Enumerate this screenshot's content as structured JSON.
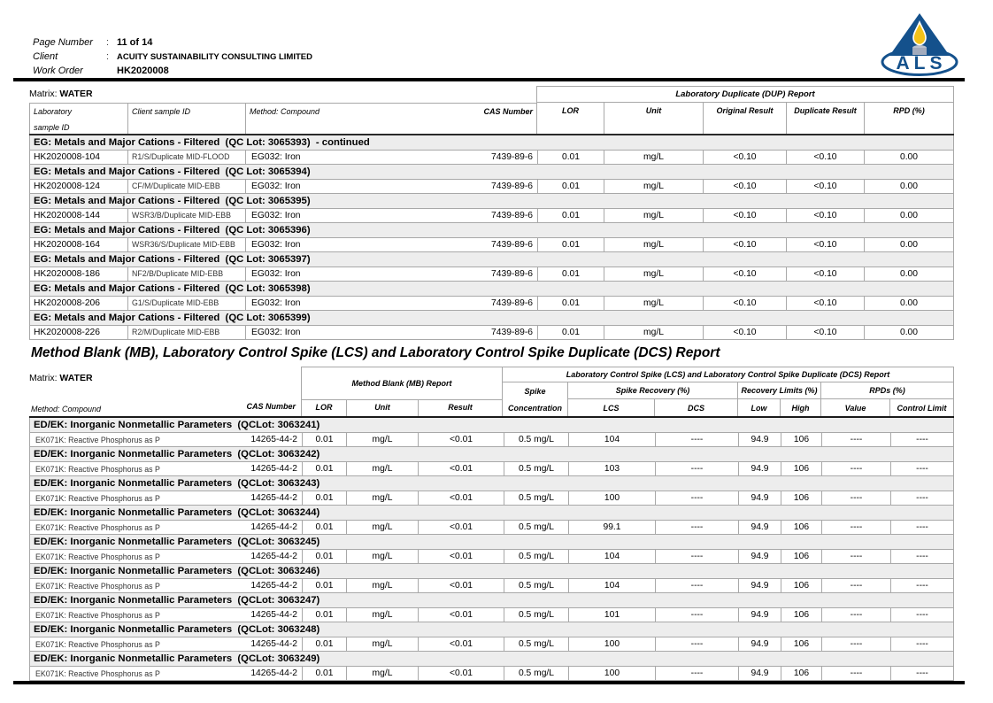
{
  "header": {
    "rows": [
      {
        "label": "Page Number",
        "colon": ":",
        "value": "11 of 14"
      },
      {
        "label": "Client",
        "colon": ":",
        "value": "ACUITY SUSTAINABILITY CONSULTING LIMITED"
      },
      {
        "label": "Work Order",
        "colon": "",
        "value": "HK2020008"
      }
    ],
    "logo": {
      "text": "ALS",
      "blue": "#14518c",
      "flame": "#f2c21a",
      "candle": "#a2abbd"
    }
  },
  "dup_table": {
    "matrix_prefix": "Matrix: ",
    "matrix_value": "WATER",
    "band_title": "Laboratory Duplicate (DUP) Report",
    "headers": {
      "lab_line1": "Laboratory",
      "lab_line2": "sample ID",
      "client": "Client sample ID",
      "method": "Method: Compound",
      "cas": "CAS Number",
      "lor": "LOR",
      "unit": "Unit",
      "original": "Original Result",
      "duplicate": "Duplicate Result",
      "rpd": "RPD (%)"
    },
    "sections": [
      {
        "title": "EG: Metals and Major Cations - Filtered  (QC Lot: 3065393)  - continued",
        "rows": [
          {
            "lab_id": "HK2020008-104",
            "client_id": "R1/S/Duplicate MID-FLOOD",
            "method": "EG032: Iron",
            "cas": "7439-89-6",
            "lor": "0.01",
            "unit": "mg/L",
            "original": "<0.10",
            "duplicate": "<0.10",
            "rpd": "0.00"
          }
        ]
      },
      {
        "title": "EG: Metals and Major Cations - Filtered  (QC Lot: 3065394)",
        "rows": [
          {
            "lab_id": "HK2020008-124",
            "client_id": "CF/M/Duplicate MID-EBB",
            "method": "EG032: Iron",
            "cas": "7439-89-6",
            "lor": "0.01",
            "unit": "mg/L",
            "original": "<0.10",
            "duplicate": "<0.10",
            "rpd": "0.00"
          }
        ]
      },
      {
        "title": "EG: Metals and Major Cations - Filtered  (QC Lot: 3065395)",
        "rows": [
          {
            "lab_id": "HK2020008-144",
            "client_id": "WSR3/B/Duplicate MID-EBB",
            "method": "EG032: Iron",
            "cas": "7439-89-6",
            "lor": "0.01",
            "unit": "mg/L",
            "original": "<0.10",
            "duplicate": "<0.10",
            "rpd": "0.00"
          }
        ]
      },
      {
        "title": "EG: Metals and Major Cations - Filtered  (QC Lot: 3065396)",
        "rows": [
          {
            "lab_id": "HK2020008-164",
            "client_id": "WSR36/S/Duplicate MID-EBB",
            "method": "EG032: Iron",
            "cas": "7439-89-6",
            "lor": "0.01",
            "unit": "mg/L",
            "original": "<0.10",
            "duplicate": "<0.10",
            "rpd": "0.00"
          }
        ]
      },
      {
        "title": "EG: Metals and Major Cations - Filtered  (QC Lot: 3065397)",
        "rows": [
          {
            "lab_id": "HK2020008-186",
            "client_id": "NF2/B/Duplicate MID-EBB",
            "method": "EG032: Iron",
            "cas": "7439-89-6",
            "lor": "0.01",
            "unit": "mg/L",
            "original": "<0.10",
            "duplicate": "<0.10",
            "rpd": "0.00"
          }
        ]
      },
      {
        "title": "EG: Metals and Major Cations - Filtered  (QC Lot: 3065398)",
        "rows": [
          {
            "lab_id": "HK2020008-206",
            "client_id": "G1/S/Duplicate MID-EBB",
            "method": "EG032: Iron",
            "cas": "7439-89-6",
            "lor": "0.01",
            "unit": "mg/L",
            "original": "<0.10",
            "duplicate": "<0.10",
            "rpd": "0.00"
          }
        ]
      },
      {
        "title": "EG: Metals and Major Cations - Filtered  (QC Lot: 3065399)",
        "rows": [
          {
            "lab_id": "HK2020008-226",
            "client_id": "R2/M/Duplicate MID-EBB",
            "method": "EG032: Iron",
            "cas": "7439-89-6",
            "lor": "0.01",
            "unit": "mg/L",
            "original": "<0.10",
            "duplicate": "<0.10",
            "rpd": "0.00"
          }
        ]
      }
    ]
  },
  "mb_heading": "Method Blank (MB), Laboratory Control Spike (LCS) and Laboratory Control Spike Duplicate (DCS) Report",
  "mb_table": {
    "matrix_prefix": "Matrix: ",
    "matrix_value": "WATER",
    "mb_band": "Method Blank (MB) Report",
    "lcs_band": "Laboratory Control Spike (LCS) and Laboratory Control Spike Duplicate (DCS) Report",
    "headers": {
      "method": "Method: Compound",
      "cas": "CAS Number",
      "lor": "LOR",
      "unit": "Unit",
      "result": "Result",
      "spike1": "Spike",
      "spike2": "Concentration",
      "recovery": "Spike Recovery (%)",
      "limits": "Recovery Limits (%)",
      "rpds": "RPDs (%)",
      "lcs": "LCS",
      "dcs": "DCS",
      "low": "Low",
      "high": "High",
      "value": "Value",
      "control_limit": "Control Limit"
    },
    "sections": [
      {
        "title": "ED/EK: Inorganic Nonmetallic Parameters  (QCLot: 3063241)",
        "rows": [
          {
            "method": "EK071K: Reactive Phosphorus as P",
            "cas": "14265-44-2",
            "lor": "0.01",
            "unit": "mg/L",
            "result": "<0.01",
            "spike_conc": "0.5 mg/L",
            "lcs": "104",
            "dcs": "----",
            "low": "94.9",
            "high": "106",
            "value": "----",
            "control_limit": "----"
          }
        ]
      },
      {
        "title": "ED/EK: Inorganic Nonmetallic Parameters  (QCLot: 3063242)",
        "rows": [
          {
            "method": "EK071K: Reactive Phosphorus as P",
            "cas": "14265-44-2",
            "lor": "0.01",
            "unit": "mg/L",
            "result": "<0.01",
            "spike_conc": "0.5 mg/L",
            "lcs": "103",
            "dcs": "----",
            "low": "94.9",
            "high": "106",
            "value": "----",
            "control_limit": "----"
          }
        ]
      },
      {
        "title": "ED/EK: Inorganic Nonmetallic Parameters  (QCLot: 3063243)",
        "rows": [
          {
            "method": "EK071K: Reactive Phosphorus as P",
            "cas": "14265-44-2",
            "lor": "0.01",
            "unit": "mg/L",
            "result": "<0.01",
            "spike_conc": "0.5 mg/L",
            "lcs": "100",
            "dcs": "----",
            "low": "94.9",
            "high": "106",
            "value": "----",
            "control_limit": "----"
          }
        ]
      },
      {
        "title": "ED/EK: Inorganic Nonmetallic Parameters  (QCLot: 3063244)",
        "rows": [
          {
            "method": "EK071K: Reactive Phosphorus as P",
            "cas": "14265-44-2",
            "lor": "0.01",
            "unit": "mg/L",
            "result": "<0.01",
            "spike_conc": "0.5 mg/L",
            "lcs": "99.1",
            "dcs": "----",
            "low": "94.9",
            "high": "106",
            "value": "----",
            "control_limit": "----"
          }
        ]
      },
      {
        "title": "ED/EK: Inorganic Nonmetallic Parameters  (QCLot: 3063245)",
        "rows": [
          {
            "method": "EK071K: Reactive Phosphorus as P",
            "cas": "14265-44-2",
            "lor": "0.01",
            "unit": "mg/L",
            "result": "<0.01",
            "spike_conc": "0.5 mg/L",
            "lcs": "104",
            "dcs": "----",
            "low": "94.9",
            "high": "106",
            "value": "----",
            "control_limit": "----"
          }
        ]
      },
      {
        "title": "ED/EK: Inorganic Nonmetallic Parameters  (QCLot: 3063246)",
        "rows": [
          {
            "method": "EK071K: Reactive Phosphorus as P",
            "cas": "14265-44-2",
            "lor": "0.01",
            "unit": "mg/L",
            "result": "<0.01",
            "spike_conc": "0.5 mg/L",
            "lcs": "104",
            "dcs": "----",
            "low": "94.9",
            "high": "106",
            "value": "----",
            "control_limit": "----"
          }
        ]
      },
      {
        "title": "ED/EK: Inorganic Nonmetallic Parameters  (QCLot: 3063247)",
        "rows": [
          {
            "method": "EK071K: Reactive Phosphorus as P",
            "cas": "14265-44-2",
            "lor": "0.01",
            "unit": "mg/L",
            "result": "<0.01",
            "spike_conc": "0.5 mg/L",
            "lcs": "101",
            "dcs": "----",
            "low": "94.9",
            "high": "106",
            "value": "----",
            "control_limit": "----"
          }
        ]
      },
      {
        "title": "ED/EK: Inorganic Nonmetallic Parameters  (QCLot: 3063248)",
        "rows": [
          {
            "method": "EK071K: Reactive Phosphorus as P",
            "cas": "14265-44-2",
            "lor": "0.01",
            "unit": "mg/L",
            "result": "<0.01",
            "spike_conc": "0.5 mg/L",
            "lcs": "100",
            "dcs": "----",
            "low": "94.9",
            "high": "106",
            "value": "----",
            "control_limit": "----"
          }
        ]
      },
      {
        "title": "ED/EK: Inorganic Nonmetallic Parameters  (QCLot: 3063249)",
        "rows": [
          {
            "method": "EK071K: Reactive Phosphorus as P",
            "cas": "14265-44-2",
            "lor": "0.01",
            "unit": "mg/L",
            "result": "<0.01",
            "spike_conc": "0.5 mg/L",
            "lcs": "100",
            "dcs": "----",
            "low": "94.9",
            "high": "106",
            "value": "----",
            "control_limit": "----"
          }
        ]
      }
    ]
  }
}
